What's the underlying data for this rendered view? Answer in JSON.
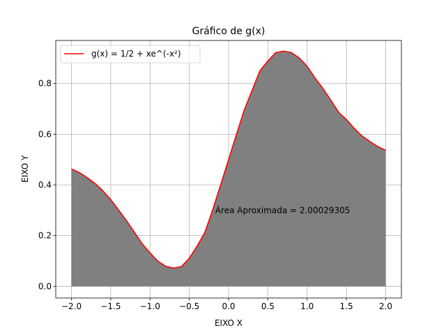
{
  "chart_data": {
    "type": "area",
    "title": "Gráfico de g(x)",
    "xlabel": "EIXO X",
    "ylabel": "EIXO Y",
    "xlim": [
      -2.2,
      2.2
    ],
    "ylim": [
      -0.046,
      0.97
    ],
    "grid": true,
    "legend_position": "top-left",
    "x_ticks": [
      -2.0,
      -1.5,
      -1.0,
      -0.5,
      0.0,
      0.5,
      1.0,
      1.5,
      2.0
    ],
    "x_tick_labels": [
      "−2.0",
      "−1.5",
      "−1.0",
      "−0.5",
      "0.0",
      "0.5",
      "1.0",
      "1.5",
      "2.0"
    ],
    "y_ticks": [
      0.0,
      0.2,
      0.4,
      0.6,
      0.8
    ],
    "y_tick_labels": [
      "0.0",
      "0.2",
      "0.4",
      "0.6",
      "0.8"
    ],
    "series": [
      {
        "name": "g(x) = 1/2 + xe^(-x²)",
        "color": "#ff0000",
        "x": [
          -2.0,
          -1.9,
          -1.8,
          -1.7,
          -1.6,
          -1.5,
          -1.4,
          -1.3,
          -1.2,
          -1.1,
          -1.0,
          -0.9,
          -0.8,
          -0.7,
          -0.6,
          -0.5,
          -0.4,
          -0.3,
          -0.2,
          -0.1,
          0.0,
          0.1,
          0.2,
          0.3,
          0.4,
          0.5,
          0.6,
          0.7,
          0.8,
          0.9,
          1.0,
          1.1,
          1.2,
          1.3,
          1.4,
          1.5,
          1.6,
          1.7,
          1.8,
          1.9,
          2.0
        ],
        "y": [
          0.463,
          0.449,
          0.429,
          0.406,
          0.377,
          0.342,
          0.301,
          0.259,
          0.214,
          0.168,
          0.132,
          0.099,
          0.079,
          0.072,
          0.078,
          0.111,
          0.159,
          0.214,
          0.304,
          0.401,
          0.5,
          0.599,
          0.696,
          0.774,
          0.851,
          0.889,
          0.922,
          0.928,
          0.922,
          0.901,
          0.868,
          0.822,
          0.781,
          0.735,
          0.687,
          0.658,
          0.623,
          0.593,
          0.571,
          0.551,
          0.537
        ]
      }
    ],
    "fill": {
      "color": "#808080",
      "from_y": 0
    },
    "annotation": {
      "text": "Área Aproximada = 2.00029305",
      "x": -0.17,
      "y": 0.3
    }
  }
}
